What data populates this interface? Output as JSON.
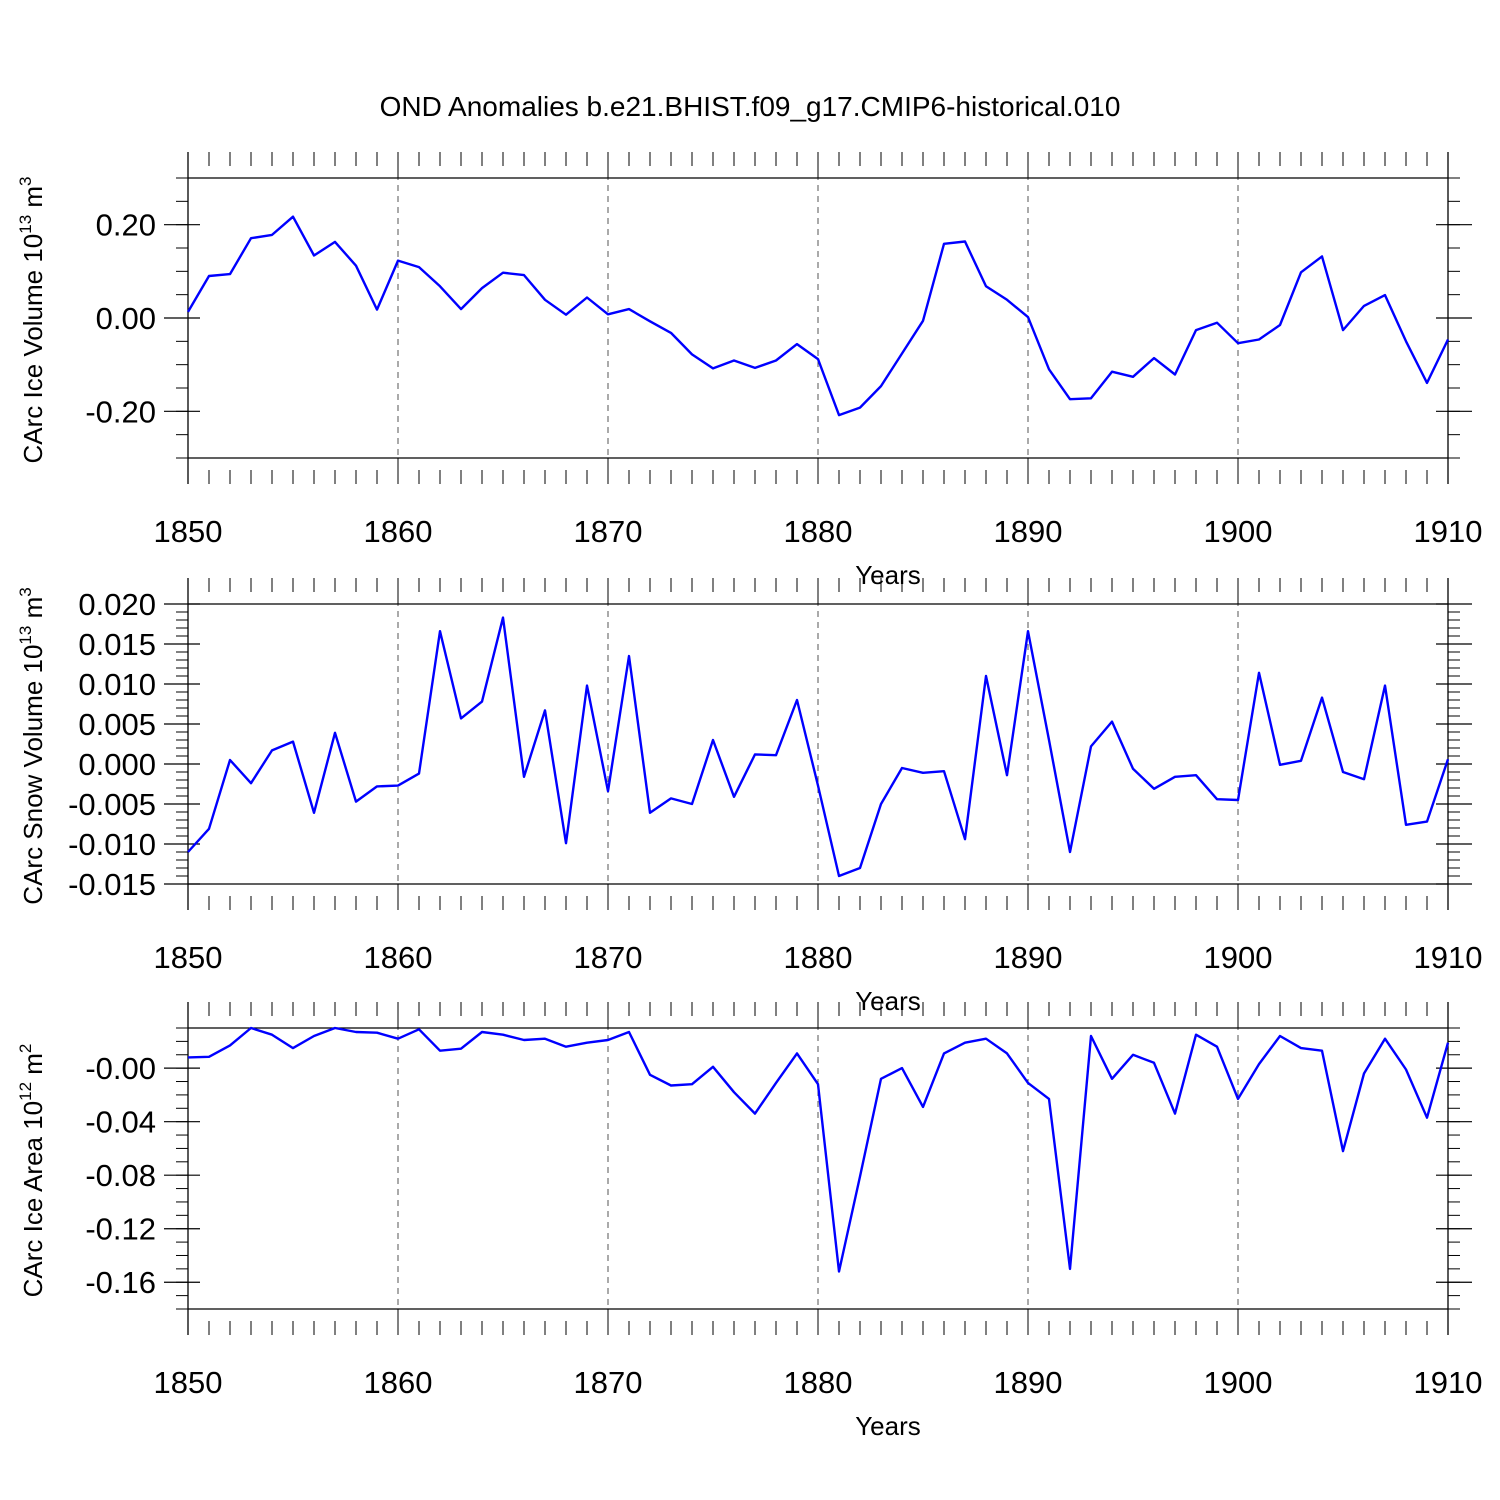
{
  "title": "OND Anomalies b.e21.BHIST.f09_g17.CMIP6-historical.010",
  "colors": {
    "line": "#0000ff",
    "axis": "#000000",
    "grid": "#000000"
  },
  "chart_data": [
    {
      "type": "line",
      "name": "ice-volume",
      "ylabel": "CArc Ice Volume 10",
      "ylabel_exp": "13",
      "ylabel_unit": " m",
      "ylabel_unit_exp": "3",
      "xlabel": "Years",
      "xlim": [
        1850,
        1910
      ],
      "ylim": [
        -0.3,
        0.3
      ],
      "xticks": [
        1850,
        1860,
        1870,
        1880,
        1890,
        1900,
        1910
      ],
      "xtick_labels": [
        "1850",
        "1860",
        "1870",
        "1880",
        "1890",
        "1900",
        "1910"
      ],
      "yticks": [
        0.2,
        0.0,
        -0.2
      ],
      "ytick_labels": [
        "0.20",
        "0.00",
        "-0.20"
      ],
      "ref_line": 0.3,
      "minor_y_step": 0.05,
      "x_start": 1850,
      "values": [
        0.013,
        0.09,
        0.094,
        0.171,
        0.178,
        0.217,
        0.134,
        0.163,
        0.112,
        0.018,
        0.123,
        0.109,
        0.068,
        0.019,
        0.064,
        0.097,
        0.092,
        0.039,
        0.007,
        0.044,
        0.008,
        0.019,
        -0.007,
        -0.032,
        -0.078,
        -0.108,
        -0.091,
        -0.107,
        -0.091,
        -0.056,
        -0.088,
        -0.208,
        -0.192,
        -0.146,
        -0.076,
        -0.006,
        0.159,
        0.164,
        0.068,
        0.039,
        0.002,
        -0.11,
        -0.174,
        -0.172,
        -0.115,
        -0.126,
        -0.086,
        -0.121,
        -0.026,
        -0.01,
        -0.054,
        -0.046,
        -0.015,
        0.098,
        0.132,
        -0.026,
        0.026,
        0.049,
        -0.05,
        -0.139,
        -0.046
      ]
    },
    {
      "type": "line",
      "name": "snow-volume",
      "ylabel": "CArc Snow Volume 10",
      "ylabel_exp": "13",
      "ylabel_unit": " m",
      "ylabel_unit_exp": "3",
      "xlabel": "Years",
      "xlim": [
        1850,
        1910
      ],
      "ylim": [
        -0.015,
        0.02
      ],
      "xticks": [
        1850,
        1860,
        1870,
        1880,
        1890,
        1900,
        1910
      ],
      "xtick_labels": [
        "1850",
        "1860",
        "1870",
        "1880",
        "1890",
        "1900",
        "1910"
      ],
      "yticks": [
        0.02,
        0.015,
        0.01,
        0.005,
        0.0,
        -0.005,
        -0.01,
        -0.015
      ],
      "ytick_labels": [
        "0.020",
        "0.015",
        "0.010",
        "0.005",
        "0.000",
        "-0.005",
        "-0.010",
        "-0.015"
      ],
      "ref_line": null,
      "minor_y_step": 0.001,
      "x_start": 1850,
      "values": [
        -0.011,
        -0.0081,
        0.0005,
        -0.0024,
        0.0017,
        0.0028,
        -0.0061,
        0.0039,
        -0.0047,
        -0.0028,
        -0.0027,
        -0.0012,
        0.0166,
        0.0057,
        0.0078,
        0.0183,
        -0.0016,
        0.0067,
        -0.0099,
        0.0098,
        -0.0034,
        0.0135,
        -0.0061,
        -0.0043,
        -0.005,
        0.003,
        -0.0041,
        0.0012,
        0.0011,
        0.008,
        -0.0027,
        -0.014,
        -0.013,
        -0.005,
        -0.0005,
        -0.0011,
        -0.0009,
        -0.0094,
        0.011,
        -0.0014,
        0.0166,
        0.003,
        -0.011,
        0.0022,
        0.0053,
        -0.0006,
        -0.0031,
        -0.0016,
        -0.0014,
        -0.0044,
        -0.0045,
        0.0114,
        -0.0001,
        0.0004,
        0.0083,
        -0.001,
        -0.0019,
        0.0098,
        -0.0076,
        -0.0072,
        0.0006
      ]
    },
    {
      "type": "line",
      "name": "ice-area",
      "ylabel": "CArc Ice Area 10",
      "ylabel_exp": "12",
      "ylabel_unit": " m",
      "ylabel_unit_exp": "2",
      "xlabel": "Years",
      "xlim": [
        1850,
        1910
      ],
      "ylim": [
        -0.18,
        0.03
      ],
      "xticks": [
        1850,
        1860,
        1870,
        1880,
        1890,
        1900,
        1910
      ],
      "xtick_labels": [
        "1850",
        "1860",
        "1870",
        "1880",
        "1890",
        "1900",
        "1910"
      ],
      "yticks": [
        0.0,
        -0.04,
        -0.08,
        -0.12,
        -0.16
      ],
      "ytick_labels": [
        "-0.00",
        "-0.04",
        "-0.08",
        "-0.12",
        "-0.16"
      ],
      "ref_line": 0.03,
      "minor_y_step": 0.01,
      "x_start": 1850,
      "values": [
        0.008,
        0.0085,
        0.017,
        0.03,
        0.025,
        0.015,
        0.024,
        0.03,
        0.027,
        0.0265,
        0.022,
        0.029,
        0.013,
        0.0145,
        0.027,
        0.025,
        0.021,
        0.022,
        0.016,
        0.019,
        0.021,
        0.027,
        -0.005,
        -0.013,
        -0.012,
        0.001,
        -0.018,
        -0.034,
        -0.011,
        0.011,
        -0.012,
        -0.152,
        -0.081,
        -0.008,
        0.0,
        -0.029,
        0.011,
        0.019,
        0.022,
        0.011,
        -0.011,
        -0.023,
        -0.15,
        0.024,
        -0.008,
        0.01,
        0.004,
        -0.034,
        0.025,
        0.016,
        -0.023,
        0.003,
        0.024,
        0.015,
        0.013,
        -0.062,
        -0.004,
        0.022,
        -0.001,
        -0.037,
        0.019
      ]
    }
  ]
}
